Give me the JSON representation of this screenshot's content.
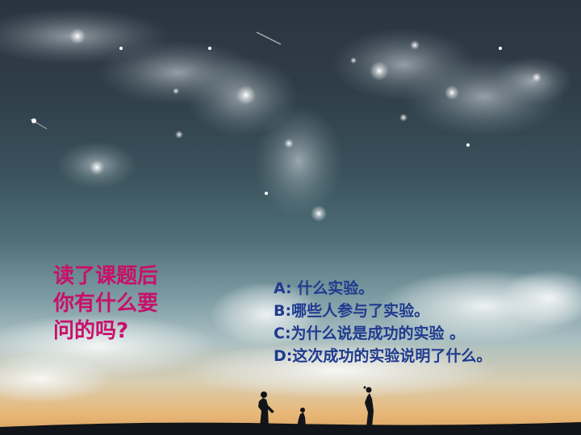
{
  "question": {
    "lines": [
      "读了课题后",
      "你有什么要",
      "问的吗?"
    ]
  },
  "answers": [
    "A:  什么实验。",
    "B:哪些人参与了实验。",
    "C:为什么说是成功的实验  。",
    "D:这次成功的实验说明了什么。"
  ]
}
